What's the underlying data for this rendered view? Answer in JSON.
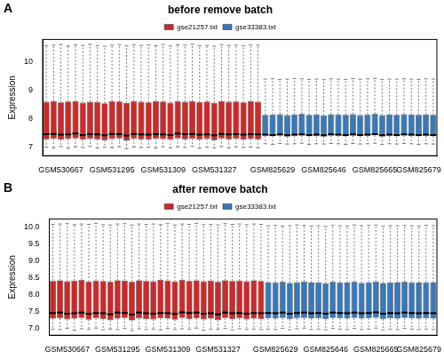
{
  "chart_data": [
    {
      "type": "boxplot",
      "annotation": "A",
      "title": "before remove batch",
      "y_label": "Expression",
      "legend": "top",
      "grid": false,
      "ylim": [
        6.7,
        10.8
      ],
      "yticks": [
        7,
        8,
        9,
        10
      ],
      "categories": [
        null,
        null,
        "GSM530667",
        null,
        null,
        null,
        null,
        null,
        null,
        "GSM531295",
        null,
        null,
        null,
        null,
        null,
        null,
        "GSM531309",
        null,
        null,
        null,
        null,
        null,
        null,
        "GSM531327",
        null,
        null,
        null,
        null,
        null,
        null,
        null,
        "GSM825629",
        null,
        null,
        null,
        null,
        null,
        null,
        "GSM825646",
        null,
        null,
        null,
        null,
        null,
        null,
        "GSM825665",
        null,
        null,
        null,
        null,
        null,
        "GSM825679",
        null,
        null
      ],
      "series": [
        {
          "name": "gse21257.txt",
          "color": "#cc2a2a",
          "values": [
            [
              7.0,
              7.28,
              7.46,
              8.6,
              10.58
            ],
            [
              6.98,
              7.3,
              7.47,
              8.62,
              10.6
            ],
            [
              7.02,
              7.27,
              7.44,
              8.58,
              10.62
            ],
            [
              6.96,
              7.29,
              7.45,
              8.61,
              10.57
            ],
            [
              7.01,
              7.31,
              7.48,
              8.63,
              10.61
            ],
            [
              6.99,
              7.26,
              7.43,
              8.57,
              10.59
            ],
            [
              7.03,
              7.3,
              7.46,
              8.6,
              10.63
            ],
            [
              6.97,
              7.28,
              7.45,
              8.59,
              10.58
            ],
            [
              7.0,
              7.25,
              7.42,
              8.55,
              10.56
            ],
            [
              6.98,
              7.29,
              7.47,
              8.62,
              10.6
            ],
            [
              7.02,
              7.31,
              7.46,
              8.61,
              10.62
            ],
            [
              6.95,
              7.24,
              7.41,
              8.56,
              10.57
            ],
            [
              7.01,
              7.3,
              7.47,
              8.62,
              10.61
            ],
            [
              6.99,
              7.28,
              7.45,
              8.6,
              10.59
            ],
            [
              7.0,
              7.27,
              7.44,
              8.58,
              10.6
            ],
            [
              6.97,
              7.3,
              7.46,
              8.63,
              10.58
            ],
            [
              7.02,
              7.29,
              7.45,
              8.61,
              10.62
            ],
            [
              6.98,
              7.26,
              7.43,
              8.57,
              10.57
            ],
            [
              7.01,
              7.31,
              7.48,
              8.63,
              10.61
            ],
            [
              6.99,
              7.28,
              7.46,
              8.6,
              10.6
            ],
            [
              7.03,
              7.3,
              7.47,
              8.62,
              10.63
            ],
            [
              6.96,
              7.27,
              7.44,
              8.59,
              10.58
            ],
            [
              7.0,
              7.29,
              7.45,
              8.61,
              10.59
            ],
            [
              6.98,
              7.25,
              7.42,
              8.56,
              10.56
            ],
            [
              7.02,
              7.31,
              7.47,
              8.62,
              10.62
            ],
            [
              6.97,
              7.28,
              7.45,
              8.6,
              10.59
            ],
            [
              7.01,
              7.3,
              7.46,
              8.61,
              10.6
            ],
            [
              6.99,
              7.27,
              7.44,
              8.58,
              10.58
            ],
            [
              7.0,
              7.29,
              7.46,
              8.62,
              10.61
            ],
            [
              6.98,
              7.28,
              7.45,
              8.6,
              10.6
            ],
            null,
            null,
            null,
            null,
            null,
            null,
            null,
            null,
            null,
            null,
            null,
            null,
            null,
            null,
            null,
            null,
            null,
            null,
            null,
            null,
            null,
            null,
            null,
            null
          ]
        },
        {
          "name": "gse33383.txt",
          "color": "#3a78b8",
          "values": [
            null,
            null,
            null,
            null,
            null,
            null,
            null,
            null,
            null,
            null,
            null,
            null,
            null,
            null,
            null,
            null,
            null,
            null,
            null,
            null,
            null,
            null,
            null,
            null,
            null,
            null,
            null,
            null,
            null,
            null,
            [
              7.12,
              7.4,
              7.44,
              8.14,
              9.4
            ],
            [
              7.1,
              7.39,
              7.43,
              8.15,
              9.41
            ],
            [
              7.13,
              7.41,
              7.45,
              8.16,
              9.39
            ],
            [
              7.11,
              7.38,
              7.42,
              8.13,
              9.4
            ],
            [
              7.12,
              7.4,
              7.44,
              8.15,
              9.42
            ],
            [
              7.14,
              7.41,
              7.45,
              8.17,
              9.41
            ],
            [
              7.1,
              7.39,
              7.43,
              8.14,
              9.39
            ],
            [
              7.12,
              7.4,
              7.44,
              8.15,
              9.4
            ],
            [
              7.11,
              7.38,
              7.42,
              8.12,
              9.38
            ],
            [
              7.13,
              7.41,
              7.45,
              8.16,
              9.41
            ],
            [
              7.12,
              7.4,
              7.44,
              8.15,
              9.4
            ],
            [
              7.1,
              7.39,
              7.43,
              8.14,
              9.39
            ],
            [
              7.13,
              7.41,
              7.45,
              8.16,
              9.42
            ],
            [
              7.11,
              7.39,
              7.43,
              8.13,
              9.4
            ],
            [
              7.12,
              7.4,
              7.44,
              8.15,
              9.41
            ],
            [
              7.14,
              7.42,
              7.46,
              8.17,
              9.42
            ],
            [
              7.1,
              7.38,
              7.42,
              8.13,
              9.39
            ],
            [
              7.12,
              7.4,
              7.44,
              8.15,
              9.4
            ],
            [
              7.11,
              7.39,
              7.43,
              8.14,
              9.4
            ],
            [
              7.13,
              7.41,
              7.45,
              8.16,
              9.41
            ],
            [
              7.12,
              7.4,
              7.44,
              8.15,
              9.4
            ],
            [
              7.1,
              7.39,
              7.43,
              8.14,
              9.39
            ],
            [
              7.12,
              7.4,
              7.44,
              8.15,
              9.41
            ],
            [
              7.11,
              7.39,
              7.43,
              8.14,
              9.4
            ]
          ]
        }
      ]
    },
    {
      "type": "boxplot",
      "annotation": "B",
      "title": "after remove batch",
      "y_label": "Expression",
      "legend": "top",
      "grid": false,
      "ylim": [
        6.8,
        10.25
      ],
      "yticks": [
        {
          "value": 7,
          "label": "7.0"
        },
        7.5,
        {
          "value": 8,
          "label": "8.0"
        },
        8.5,
        {
          "value": 9,
          "label": "9.0"
        },
        9.5,
        {
          "value": 10,
          "label": "10.0"
        }
      ],
      "categories": [
        null,
        null,
        "GSM530667",
        null,
        null,
        null,
        null,
        null,
        null,
        "GSM531295",
        null,
        null,
        null,
        null,
        null,
        null,
        "GSM531309",
        null,
        null,
        null,
        null,
        null,
        null,
        "GSM531327",
        null,
        null,
        null,
        null,
        null,
        null,
        null,
        "GSM825629",
        null,
        null,
        null,
        null,
        null,
        null,
        "GSM825646",
        null,
        null,
        null,
        null,
        null,
        null,
        "GSM825665",
        null,
        null,
        null,
        null,
        null,
        "GSM825679",
        null,
        null
      ],
      "series": [
        {
          "name": "gse21257.txt",
          "color": "#cc2a2a",
          "values": [
            [
              6.98,
              7.29,
              7.46,
              8.41,
              10.09
            ],
            [
              6.97,
              7.3,
              7.47,
              8.43,
              10.1
            ],
            [
              7.0,
              7.27,
              7.44,
              8.4,
              10.11
            ],
            [
              6.95,
              7.29,
              7.45,
              8.42,
              10.08
            ],
            [
              6.99,
              7.31,
              7.47,
              8.44,
              10.1
            ],
            [
              6.97,
              7.26,
              7.43,
              8.39,
              10.09
            ],
            [
              7.01,
              7.3,
              7.46,
              8.42,
              10.12
            ],
            [
              6.96,
              7.28,
              7.45,
              8.41,
              10.08
            ],
            [
              6.98,
              7.25,
              7.42,
              8.38,
              10.07
            ],
            [
              6.97,
              7.29,
              7.47,
              8.43,
              10.1
            ],
            [
              7.0,
              7.31,
              7.46,
              8.42,
              10.11
            ],
            [
              6.94,
              7.24,
              7.41,
              8.38,
              10.07
            ],
            [
              6.99,
              7.3,
              7.47,
              8.43,
              10.1
            ],
            [
              6.97,
              7.28,
              7.45,
              8.41,
              10.09
            ],
            [
              6.98,
              7.27,
              7.44,
              8.4,
              10.1
            ],
            [
              6.96,
              7.3,
              7.46,
              8.44,
              10.08
            ],
            [
              7.0,
              7.29,
              7.45,
              8.42,
              10.11
            ],
            [
              6.97,
              7.26,
              7.43,
              8.39,
              10.07
            ],
            [
              6.99,
              7.31,
              7.48,
              8.44,
              10.1
            ],
            [
              6.98,
              7.28,
              7.46,
              8.41,
              10.09
            ],
            [
              7.01,
              7.3,
              7.47,
              8.43,
              10.12
            ],
            [
              6.95,
              7.27,
              7.44,
              8.4,
              10.08
            ],
            [
              6.98,
              7.29,
              7.45,
              8.42,
              10.09
            ],
            [
              6.97,
              7.25,
              7.42,
              8.38,
              10.07
            ],
            [
              7.0,
              7.31,
              7.47,
              8.43,
              10.11
            ],
            [
              6.96,
              7.28,
              7.45,
              8.41,
              10.09
            ],
            [
              6.99,
              7.3,
              7.46,
              8.42,
              10.1
            ],
            [
              6.97,
              7.27,
              7.44,
              8.4,
              10.08
            ],
            [
              6.98,
              7.29,
              7.46,
              8.43,
              10.1
            ],
            [
              6.97,
              7.28,
              7.45,
              8.41,
              10.09
            ],
            null,
            null,
            null,
            null,
            null,
            null,
            null,
            null,
            null,
            null,
            null,
            null,
            null,
            null,
            null,
            null,
            null,
            null,
            null,
            null,
            null,
            null,
            null,
            null
          ]
        },
        {
          "name": "gse33383.txt",
          "color": "#3a78b8",
          "values": [
            null,
            null,
            null,
            null,
            null,
            null,
            null,
            null,
            null,
            null,
            null,
            null,
            null,
            null,
            null,
            null,
            null,
            null,
            null,
            null,
            null,
            null,
            null,
            null,
            null,
            null,
            null,
            null,
            null,
            null,
            [
              6.98,
              7.3,
              7.46,
              8.36,
              10.05
            ],
            [
              6.97,
              7.29,
              7.45,
              8.37,
              10.06
            ],
            [
              7.0,
              7.31,
              7.47,
              8.38,
              10.04
            ],
            [
              6.96,
              7.28,
              7.44,
              8.35,
              10.05
            ],
            [
              6.99,
              7.3,
              7.46,
              8.37,
              10.07
            ],
            [
              7.01,
              7.31,
              7.47,
              8.39,
              10.06
            ],
            [
              6.97,
              7.29,
              7.45,
              8.36,
              10.04
            ],
            [
              6.98,
              7.3,
              7.46,
              8.37,
              10.05
            ],
            [
              6.96,
              7.28,
              7.44,
              8.34,
              10.03
            ],
            [
              7.0,
              7.31,
              7.47,
              8.38,
              10.06
            ],
            [
              6.98,
              7.3,
              7.46,
              8.37,
              10.05
            ],
            [
              6.97,
              7.29,
              7.45,
              8.36,
              10.04
            ],
            [
              7.0,
              7.31,
              7.47,
              8.38,
              10.07
            ],
            [
              6.97,
              7.29,
              7.45,
              8.35,
              10.05
            ],
            [
              6.98,
              7.3,
              7.46,
              8.37,
              10.06
            ],
            [
              7.01,
              7.32,
              7.48,
              8.39,
              10.07
            ],
            [
              6.96,
              7.28,
              7.44,
              8.35,
              10.04
            ],
            [
              6.98,
              7.3,
              7.46,
              8.37,
              10.05
            ],
            [
              6.97,
              7.29,
              7.45,
              8.36,
              10.05
            ],
            [
              7.0,
              7.31,
              7.47,
              8.38,
              10.06
            ],
            [
              6.98,
              7.3,
              7.46,
              8.37,
              10.05
            ],
            [
              6.97,
              7.29,
              7.45,
              8.36,
              10.04
            ],
            [
              6.98,
              7.3,
              7.46,
              8.37,
              10.06
            ],
            [
              6.97,
              7.29,
              7.45,
              8.36,
              10.05
            ]
          ]
        }
      ]
    }
  ]
}
